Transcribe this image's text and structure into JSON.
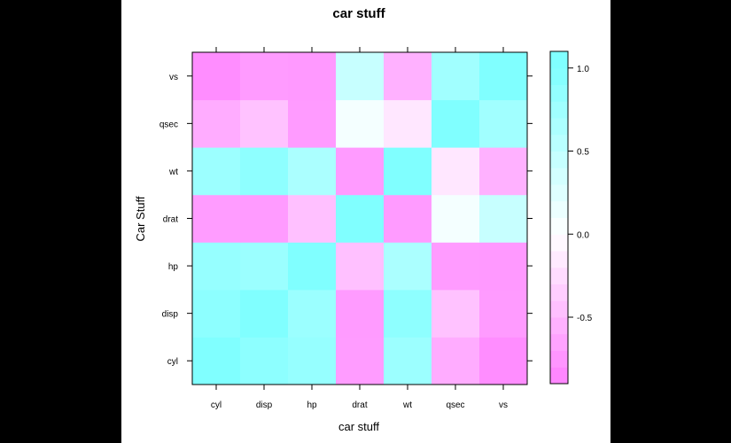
{
  "chart_data": {
    "type": "heatmap",
    "title": "car stuff",
    "xlabel": "car stuff",
    "ylabel": "Car Stuff",
    "x": [
      "cyl",
      "disp",
      "hp",
      "drat",
      "wt",
      "qsec",
      "vs"
    ],
    "y": [
      "cyl",
      "disp",
      "hp",
      "drat",
      "wt",
      "qsec",
      "vs"
    ],
    "values": [
      [
        1.0,
        0.9,
        0.83,
        -0.7,
        0.78,
        -0.59,
        -0.81
      ],
      [
        0.9,
        1.0,
        0.79,
        -0.71,
        0.89,
        -0.43,
        -0.71
      ],
      [
        0.83,
        0.79,
        1.0,
        -0.45,
        0.66,
        -0.71,
        -0.72
      ],
      [
        -0.7,
        -0.71,
        -0.45,
        1.0,
        -0.71,
        0.09,
        0.44
      ],
      [
        0.78,
        0.89,
        0.66,
        -0.71,
        1.0,
        -0.17,
        -0.55
      ],
      [
        -0.59,
        -0.43,
        -0.71,
        0.09,
        -0.17,
        1.0,
        0.74
      ],
      [
        -0.81,
        -0.71,
        -0.72,
        0.44,
        -0.55,
        0.74,
        1.0
      ]
    ],
    "colorbar": {
      "ticks": [
        1.0,
        0.5,
        0.0,
        -0.5
      ],
      "tick_labels": [
        "1.0",
        "0.5",
        "0.0",
        "-0.5"
      ],
      "range": [
        -0.9,
        1.1
      ],
      "low_color": "#ff80ff",
      "mid_color": "#ffffff",
      "high_color": "#80ffff"
    }
  }
}
